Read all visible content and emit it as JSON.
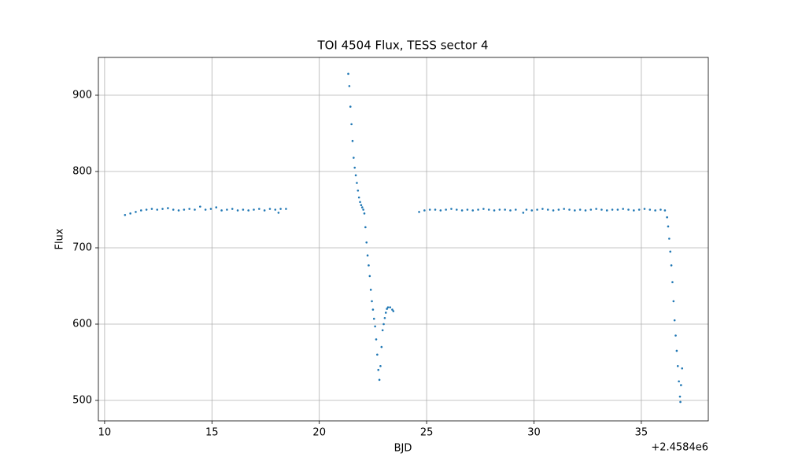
{
  "chart_data": {
    "type": "scatter",
    "title": "TOI 4504 Flux, TESS sector 4",
    "x_label": "BJD",
    "y_label": "Flux",
    "x_offset_label": "+2.4584e6",
    "color": "#1f77b4",
    "grid": true,
    "xlim": [
      9.71,
      38.12
    ],
    "ylim": [
      473.2,
      949.5
    ],
    "xticks": [
      10,
      15,
      20,
      25,
      30,
      35
    ],
    "yticks": [
      500,
      600,
      700,
      800,
      900
    ],
    "x": [
      10.95,
      11.2,
      11.45,
      11.7,
      11.95,
      12.2,
      12.45,
      12.7,
      12.95,
      13.2,
      13.45,
      13.7,
      13.95,
      14.2,
      14.45,
      14.7,
      14.95,
      15.2,
      15.45,
      15.7,
      15.95,
      16.2,
      16.45,
      16.7,
      16.95,
      17.2,
      17.45,
      17.7,
      17.95,
      18.1,
      18.2,
      18.45,
      21.35,
      21.4,
      21.45,
      21.5,
      21.55,
      21.6,
      21.65,
      21.7,
      21.75,
      21.8,
      21.85,
      21.9,
      21.95,
      22.0,
      22.05,
      22.1,
      22.15,
      22.2,
      22.25,
      22.3,
      22.35,
      22.4,
      22.45,
      22.5,
      22.55,
      22.6,
      22.65,
      22.7,
      22.75,
      22.8,
      22.85,
      22.9,
      22.95,
      23.0,
      23.05,
      23.1,
      23.15,
      23.2,
      23.3,
      23.4,
      23.45,
      24.65,
      24.9,
      25.15,
      25.4,
      25.65,
      25.9,
      26.15,
      26.4,
      26.65,
      26.9,
      27.15,
      27.4,
      27.65,
      27.9,
      28.15,
      28.4,
      28.65,
      28.9,
      29.15,
      29.5,
      29.65,
      29.9,
      30.15,
      30.4,
      30.65,
      30.9,
      31.15,
      31.4,
      31.65,
      31.9,
      32.15,
      32.4,
      32.65,
      32.9,
      33.15,
      33.4,
      33.65,
      33.9,
      34.15,
      34.4,
      34.65,
      34.9,
      35.15,
      35.4,
      35.65,
      35.9,
      36.1,
      36.2,
      36.25,
      36.3,
      36.35,
      36.4,
      36.45,
      36.5,
      36.55,
      36.6,
      36.65,
      36.7,
      36.75,
      36.8,
      36.82,
      36.85,
      36.9
    ],
    "values": [
      743,
      745,
      747,
      749,
      750,
      751,
      750,
      751,
      752,
      750,
      749,
      750,
      751,
      750,
      754,
      750,
      751,
      753,
      749,
      750,
      751,
      749,
      750,
      749,
      750,
      751,
      749,
      751,
      750,
      746,
      751,
      751,
      928,
      912,
      885,
      862,
      840,
      818,
      805,
      795,
      785,
      775,
      766,
      760,
      756,
      753,
      750,
      745,
      727,
      707,
      690,
      677,
      663,
      645,
      630,
      619,
      607,
      597,
      580,
      560,
      540,
      527,
      545,
      570,
      592,
      600,
      608,
      615,
      620,
      622,
      622,
      619,
      617,
      747,
      749,
      750,
      750,
      749,
      750,
      751,
      750,
      749,
      750,
      749,
      750,
      751,
      750,
      749,
      750,
      750,
      749,
      750,
      746,
      750,
      749,
      750,
      751,
      750,
      749,
      750,
      751,
      750,
      749,
      750,
      749,
      750,
      751,
      750,
      749,
      750,
      750,
      751,
      750,
      749,
      750,
      751,
      750,
      749,
      750,
      749,
      740,
      728,
      712,
      695,
      677,
      655,
      630,
      605,
      585,
      565,
      545,
      525,
      505,
      498,
      520,
      542
    ]
  }
}
